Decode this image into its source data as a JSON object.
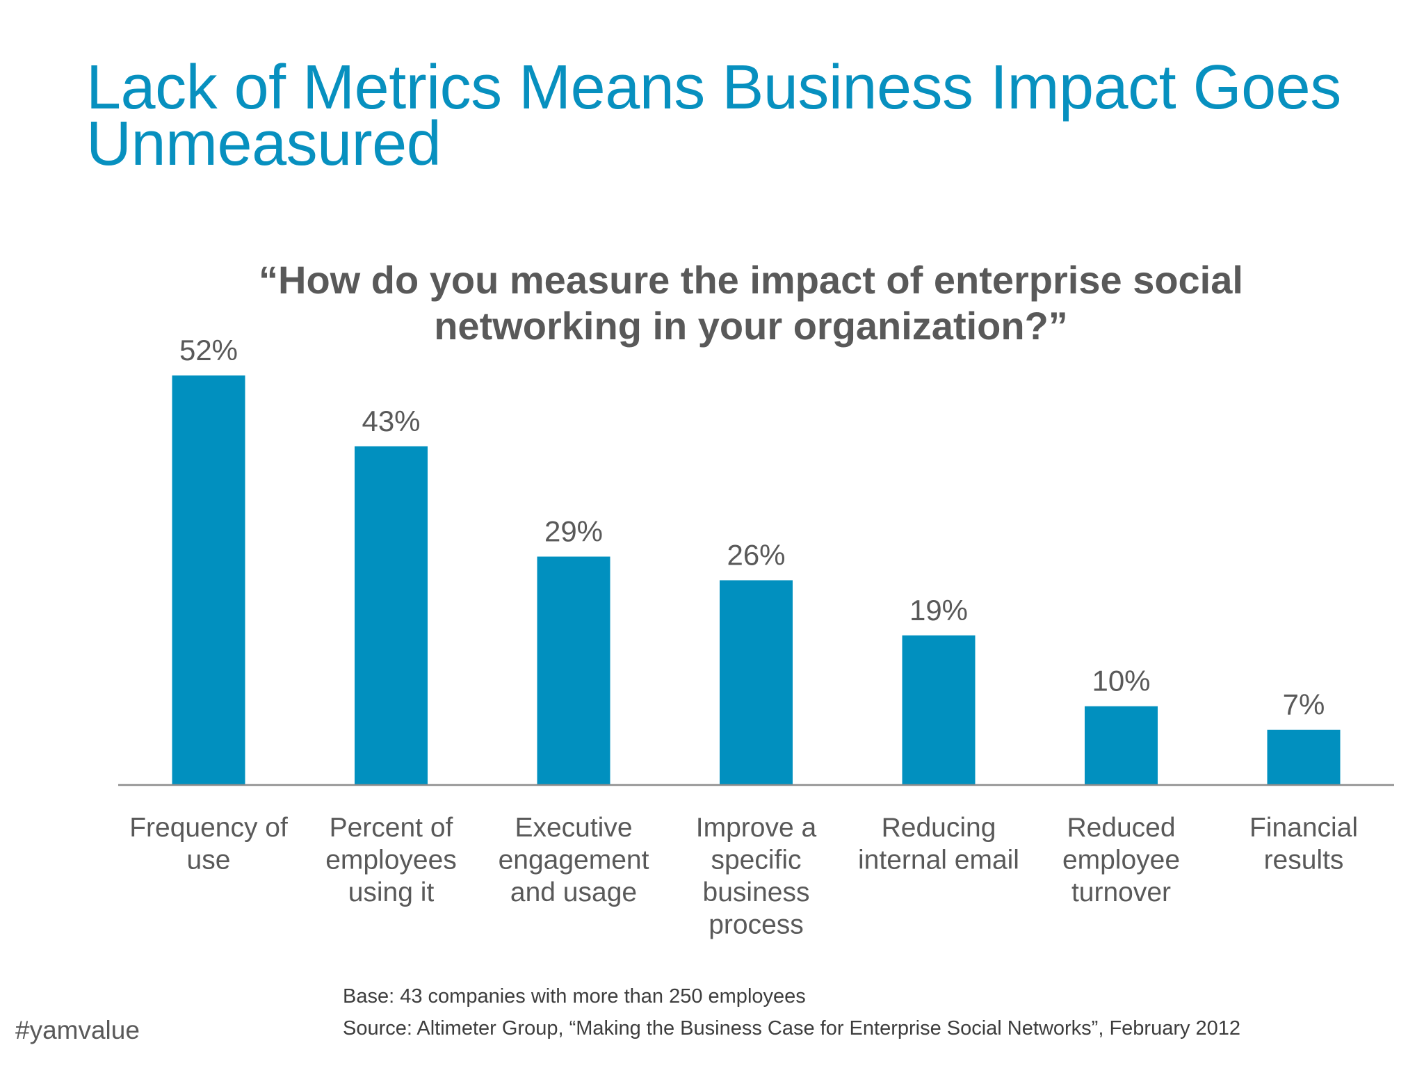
{
  "slide": {
    "title": "Lack of Metrics Means Business Impact Goes Unmeasured",
    "hashtag": "#yamvalue"
  },
  "colors": {
    "title": "#0790bf",
    "bar": "#0190bf",
    "text": "#595959"
  },
  "chart_data": {
    "type": "bar",
    "title": "“How do you measure the impact of enterprise social networking in your organization?”",
    "categories": [
      [
        "Frequency of",
        "use"
      ],
      [
        "Percent of",
        "employees",
        "using it"
      ],
      [
        "Executive",
        "engagement",
        "and usage"
      ],
      [
        "Improve a",
        "specific",
        "business",
        "process"
      ],
      [
        "Reducing",
        "internal email"
      ],
      [
        "Reduced",
        "employee",
        "turnover"
      ],
      [
        "Financial",
        "results"
      ]
    ],
    "values": [
      52,
      43,
      29,
      26,
      19,
      10,
      7
    ],
    "data_labels": [
      "52%",
      "43%",
      "29%",
      "26%",
      "19%",
      "10%",
      "7%"
    ],
    "ylim": [
      0,
      52
    ],
    "grid": false,
    "legend": "none",
    "xlabel": "",
    "ylabel": ""
  },
  "footnotes": {
    "base": "Base: 43 companies with more than 250 employees",
    "source": "Source: Altimeter Group, “Making the Business Case for Enterprise Social Networks”, February 2012"
  }
}
